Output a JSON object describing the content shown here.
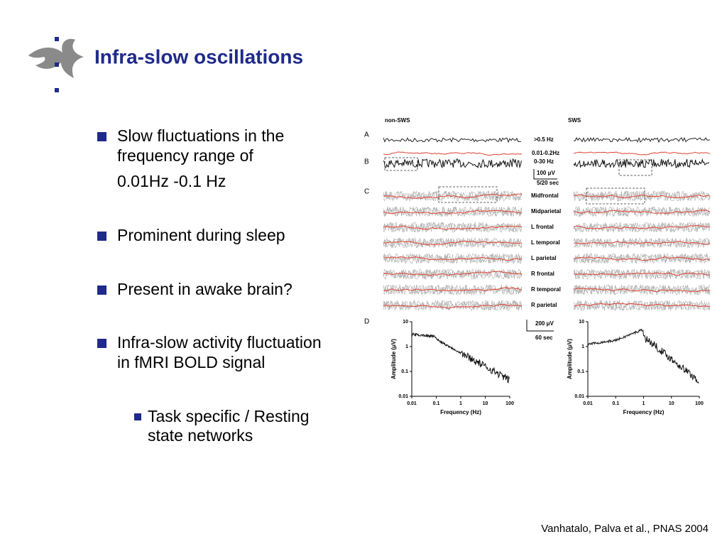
{
  "slide": {
    "title": "Infra-slow oscillations",
    "bullets": [
      {
        "lines": [
          "Slow fluctuations in the",
          "frequency range of",
          " 0.01Hz -0.1 Hz"
        ]
      },
      {
        "lines": [
          "Prominent during sleep"
        ]
      },
      {
        "lines": [
          "Present in awake brain?"
        ]
      },
      {
        "lines": [
          "Infra-slow activity fluctuation",
          "in fMRI BOLD signal"
        ]
      }
    ],
    "sub_bullets": [
      {
        "lines": [
          "Task specific / Resting",
          "state  networks"
        ]
      }
    ],
    "citation": "Vanhatalo, Palva et al., PNAS 2004"
  },
  "figure": {
    "columns": [
      "non-SWS",
      "SWS"
    ],
    "panels": [
      "A",
      "B",
      "C",
      "D"
    ],
    "band_labels": [
      ">0.5 Hz",
      "0.01-0.2Hz",
      "0-30 Hz"
    ],
    "scale_b": [
      "100 μV",
      "5/20 sec"
    ],
    "channels": [
      "Midfrontal",
      "Midparietal",
      "L frontal",
      "L temporal",
      "L parietal",
      "R frontal",
      "R temporal",
      "R parietal"
    ],
    "scale_c": [
      "200 μV",
      "60 sec"
    ],
    "y_label": "Amplitude (μV)",
    "x_label": "Frequency (Hz)",
    "yticks": [
      "10",
      "1",
      "0.1",
      "0.01"
    ],
    "xticks": [
      "0.01",
      "0.1",
      "1",
      "10",
      "100"
    ]
  }
}
